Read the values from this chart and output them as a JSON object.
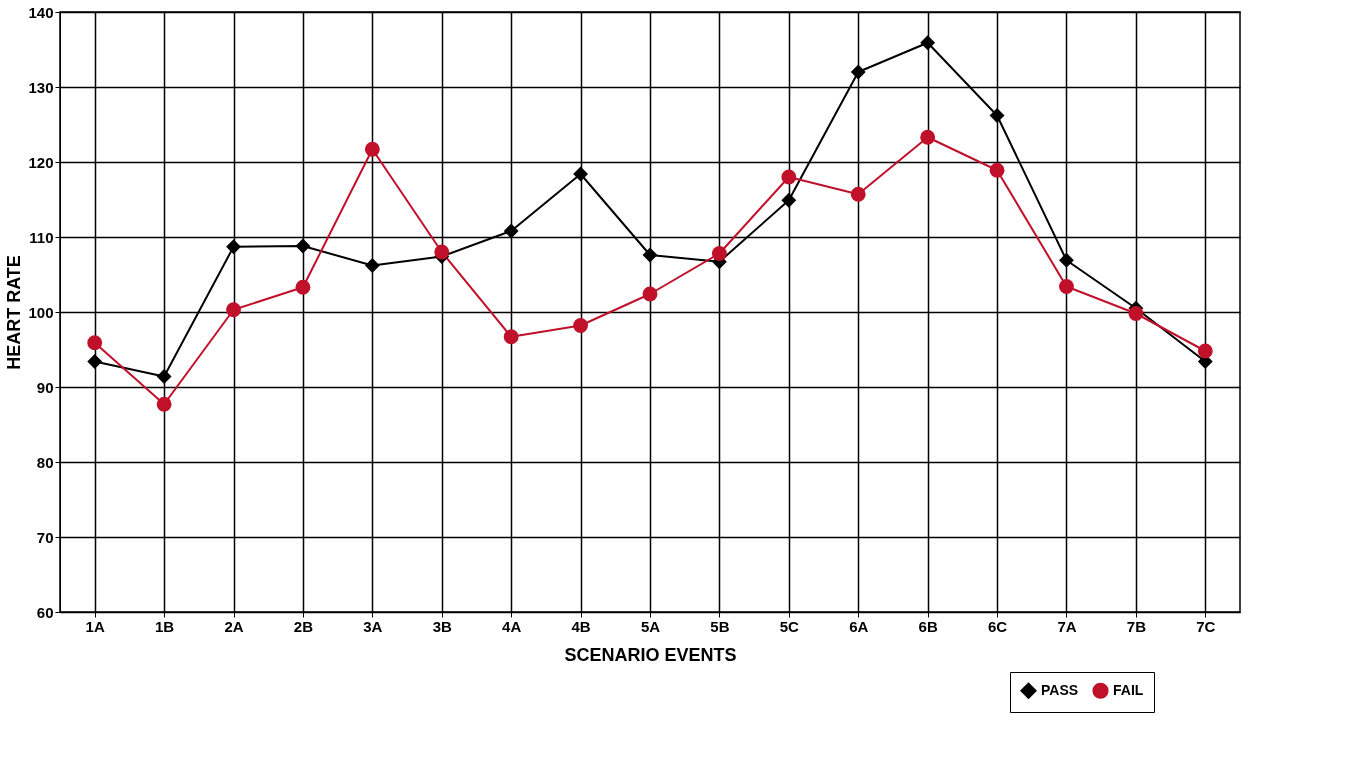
{
  "chart_data": {
    "type": "line",
    "xlabel": "SCENARIO EVENTS",
    "ylabel": "HEART RATE",
    "categories": [
      "1A",
      "1B",
      "2A",
      "2B",
      "3A",
      "3B",
      "4A",
      "4B",
      "5A",
      "5B",
      "5C",
      "6A",
      "6B",
      "6C",
      "7A",
      "7B",
      "7C"
    ],
    "series": [
      {
        "name": "PASS",
        "color": "#000000",
        "marker": "diamond",
        "values": [
          93.4,
          91.4,
          108.7,
          108.8,
          106.2,
          107.4,
          110.8,
          118.4,
          107.6,
          106.7,
          114.9,
          132.0,
          135.9,
          126.2,
          106.9,
          100.5,
          93.4
        ]
      },
      {
        "name": "FAIL",
        "color": "#c0102a",
        "marker": "circle",
        "values": [
          95.9,
          87.7,
          100.3,
          103.3,
          121.7,
          108.0,
          96.7,
          98.2,
          102.4,
          107.8,
          118.0,
          115.7,
          123.3,
          118.9,
          103.4,
          99.8,
          94.8
        ]
      }
    ],
    "ylim": [
      60,
      140
    ],
    "yticks": [
      60,
      70,
      80,
      90,
      100,
      110,
      120,
      130,
      140
    ],
    "grid": true,
    "legend": "bottom right",
    "line_style": "solid"
  }
}
